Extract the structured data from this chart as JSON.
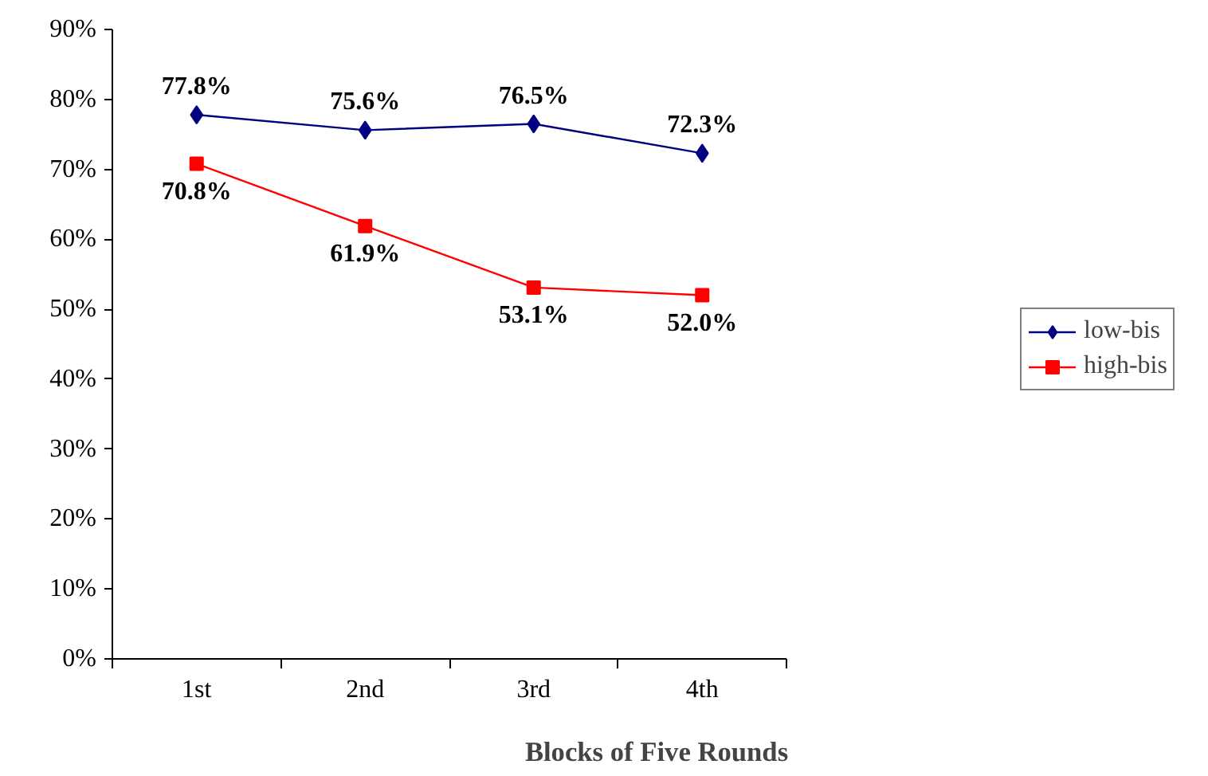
{
  "chart_data": {
    "type": "line",
    "xlabel": "Blocks of Five Rounds",
    "categories": [
      "1st",
      "2nd",
      "3rd",
      "4th"
    ],
    "series": [
      {
        "name": "low-bis",
        "color": "#000080",
        "marker": "diamond",
        "values": [
          77.8,
          75.6,
          76.5,
          72.3
        ],
        "value_labels": [
          "77.8%",
          "75.6%",
          "76.5%",
          "72.3%"
        ]
      },
      {
        "name": "high-bis",
        "color": "#ff0000",
        "marker": "square",
        "values": [
          70.8,
          61.9,
          53.1,
          52.0
        ],
        "value_labels": [
          "70.8%",
          "61.9%",
          "53.1%",
          "52.0%"
        ]
      }
    ],
    "ylim": [
      0,
      90
    ],
    "yticks": [
      {
        "value": 0,
        "label": "0%"
      },
      {
        "value": 10,
        "label": "10%"
      },
      {
        "value": 20,
        "label": "20%"
      },
      {
        "value": 30,
        "label": "30%"
      },
      {
        "value": 40,
        "label": "40%"
      },
      {
        "value": 50,
        "label": "50%"
      },
      {
        "value": 60,
        "label": "60%"
      },
      {
        "value": 70,
        "label": "70%"
      },
      {
        "value": 80,
        "label": "80%"
      },
      {
        "value": 90,
        "label": "90%"
      }
    ],
    "grid": false,
    "legend": "right",
    "line_style": "solid"
  }
}
